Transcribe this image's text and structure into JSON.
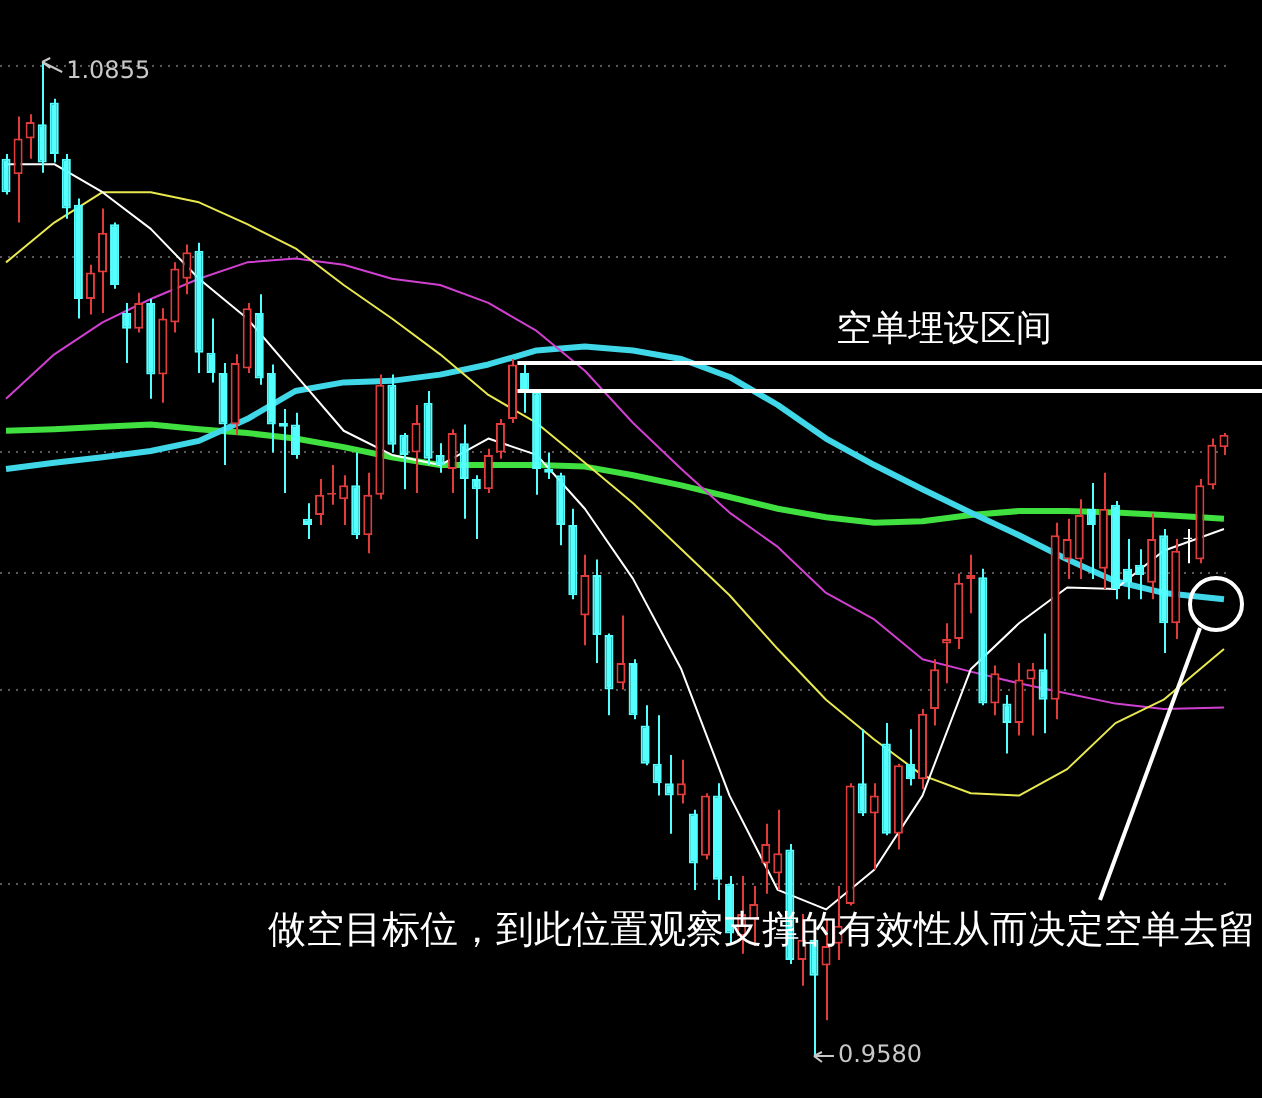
{
  "chart_data": {
    "type": "candlestick",
    "categories": [
      null,
      null,
      null,
      null,
      null,
      null,
      null,
      null,
      null,
      null,
      null,
      null,
      null,
      null,
      null,
      null,
      null,
      null,
      null,
      null,
      null,
      null,
      null,
      null,
      null,
      null,
      null,
      null,
      null,
      null,
      null,
      null,
      null,
      null,
      null,
      null,
      null,
      null,
      null,
      null,
      null,
      null,
      null,
      null,
      null,
      null,
      null,
      null,
      null,
      null,
      null,
      null,
      null,
      null,
      null,
      null,
      null,
      null,
      null,
      null,
      null,
      null,
      null,
      null,
      null,
      null,
      null,
      null,
      null,
      null,
      null,
      null,
      null,
      null,
      null,
      null,
      null,
      null,
      null,
      null,
      null,
      null,
      null,
      null,
      null,
      null,
      null,
      null,
      null,
      null,
      null,
      null,
      null,
      null,
      null,
      null,
      null,
      null,
      null,
      null,
      null,
      null
    ],
    "ohlc": [
      [
        1.0731,
        1.0737,
        1.0685,
        1.0688
      ],
      [
        1.0711,
        1.0785,
        1.0649,
        1.0757
      ],
      [
        1.0757,
        1.0788,
        1.0731,
        1.0778
      ],
      [
        1.0775,
        1.0855,
        1.0713,
        1.0726
      ],
      [
        1.0803,
        1.0808,
        1.0726,
        1.0737
      ],
      [
        1.0731,
        1.0737,
        1.0654,
        1.0667
      ],
      [
        1.0672,
        1.068,
        1.0526,
        1.0551
      ],
      [
        1.0551,
        1.0595,
        1.0531,
        1.0585
      ],
      [
        1.0585,
        1.0667,
        1.0533,
        1.0636
      ],
      [
        1.0647,
        1.0649,
        1.0564,
        1.0569
      ],
      [
        1.0533,
        1.0546,
        1.0469,
        1.0513
      ],
      [
        1.0513,
        1.0559,
        1.0508,
        1.0546
      ],
      [
        1.0546,
        1.0551,
        1.0423,
        1.0454
      ],
      [
        1.0454,
        1.0539,
        1.0418,
        1.0526
      ],
      [
        1.0521,
        1.0598,
        1.0508,
        1.059
      ],
      [
        1.0577,
        1.0621,
        1.0557,
        1.0611
      ],
      [
        1.0613,
        1.0623,
        1.0456,
        1.0482
      ],
      [
        1.0482,
        1.0526,
        1.0444,
        1.0456
      ],
      [
        1.0456,
        1.0469,
        1.0338,
        1.039
      ],
      [
        1.039,
        1.048,
        1.0377,
        1.0469
      ],
      [
        1.0462,
        1.0546,
        1.0456,
        1.0539
      ],
      [
        1.0533,
        1.0557,
        1.0441,
        1.0449
      ],
      [
        1.0456,
        1.0467,
        1.0354,
        1.039
      ],
      [
        1.0392,
        1.041,
        1.0302,
        1.0387
      ],
      [
        1.039,
        1.0405,
        1.0346,
        1.0351
      ],
      [
        1.0269,
        1.0289,
        1.0243,
        1.0261
      ],
      [
        1.0274,
        1.032,
        1.0261,
        1.03
      ],
      [
        1.03,
        1.0338,
        1.0287,
        1.0302
      ],
      [
        1.0294,
        1.0325,
        1.0261,
        1.0312
      ],
      [
        1.0312,
        1.0354,
        1.0243,
        1.0248
      ],
      [
        1.0248,
        1.0328,
        1.0225,
        1.03
      ],
      [
        1.03,
        1.0454,
        1.0294,
        1.0441
      ],
      [
        1.0441,
        1.0454,
        1.0354,
        1.0364
      ],
      [
        1.0377,
        1.0379,
        1.0307,
        1.0351
      ],
      [
        1.0354,
        1.0415,
        1.0302,
        1.0392
      ],
      [
        1.0418,
        1.0433,
        1.0338,
        1.0346
      ],
      [
        1.0351,
        1.0366,
        1.0328,
        1.0338
      ],
      [
        1.0333,
        1.0384,
        1.0302,
        1.0379
      ],
      [
        1.0366,
        1.039,
        1.0269,
        1.032
      ],
      [
        1.032,
        1.0325,
        1.0243,
        1.0307
      ],
      [
        1.0307,
        1.0359,
        1.0302,
        1.0351
      ],
      [
        1.0354,
        1.0397,
        1.0346,
        1.0392
      ],
      [
        1.0397,
        1.0474,
        1.0392,
        1.0467
      ],
      [
        1.0456,
        1.0469,
        1.0405,
        1.0431
      ],
      [
        1.0431,
        1.0433,
        1.03,
        1.0333
      ],
      [
        1.0333,
        1.0354,
        1.032,
        1.0328
      ],
      [
        1.0325,
        1.0328,
        1.0235,
        1.0261
      ],
      [
        1.0261,
        1.0282,
        1.0166,
        1.0171
      ],
      [
        1.0145,
        1.0223,
        1.0107,
        1.0197
      ],
      [
        1.0197,
        1.0217,
        1.0084,
        1.012
      ],
      [
        1.012,
        1.0122,
        1.0017,
        1.005
      ],
      [
        1.0058,
        1.0145,
        1.005,
        1.0084
      ],
      [
        1.0084,
        1.0089,
        1.0012,
        1.0017
      ],
      [
        1.0004,
        1.003,
        0.9953,
        0.9955
      ],
      [
        0.9955,
        1.0017,
        0.9914,
        0.993
      ],
      [
        0.993,
        0.9966,
        0.9865,
        0.9914
      ],
      [
        0.9914,
        0.996,
        0.9904,
        0.993
      ],
      [
        0.9891,
        0.9896,
        0.9793,
        0.9827
      ],
      [
        0.9837,
        0.9917,
        0.9832,
        0.9914
      ],
      [
        0.9914,
        0.993,
        0.978,
        0.9806
      ],
      [
        0.9801,
        0.9811,
        0.9724,
        0.9737
      ],
      [
        0.9734,
        0.9811,
        0.9711,
        0.9762
      ],
      [
        0.9755,
        0.9798,
        0.9721,
        0.9775
      ],
      [
        0.9827,
        0.9878,
        0.9788,
        0.9852
      ],
      [
        0.9814,
        0.9896,
        0.9793,
        0.984
      ],
      [
        0.9845,
        0.9852,
        0.9698,
        0.9703
      ],
      [
        0.9703,
        0.9762,
        0.967,
        0.9729
      ],
      [
        0.9729,
        0.9729,
        0.958,
        0.9683
      ],
      [
        0.9696,
        0.9755,
        0.9626,
        0.9721
      ],
      [
        0.9724,
        0.9798,
        0.9703,
        0.9747
      ],
      [
        0.9775,
        0.993,
        0.9773,
        0.9927
      ],
      [
        0.993,
        0.9999,
        0.9888,
        0.9891
      ],
      [
        0.9891,
        0.993,
        0.9819,
        0.9914
      ],
      [
        0.9981,
        1.0007,
        0.9863,
        0.9865
      ],
      [
        0.9865,
        0.9955,
        0.9845,
        0.9953
      ],
      [
        0.9955,
        0.9999,
        0.9927,
        0.9935
      ],
      [
        0.9935,
        1.0025,
        0.9922,
        1.0019
      ],
      [
        1.0025,
        1.0089,
        1.0004,
        1.0076
      ],
      [
        1.0109,
        1.0135,
        1.0058,
        1.0115
      ],
      [
        1.0115,
        1.0199,
        1.0102,
        1.0187
      ],
      [
        1.0192,
        1.0223,
        1.0148,
        1.0197
      ],
      [
        1.0194,
        1.0205,
        1.003,
        1.0032
      ],
      [
        1.0032,
        1.0081,
        1.0017,
        1.0071
      ],
      [
        1.0032,
        1.0043,
        0.9968,
        1.0007
      ],
      [
        1.0007,
        1.0084,
        0.9991,
        1.0063
      ],
      [
        1.0063,
        1.0084,
        0.9991,
        1.0076
      ],
      [
        1.0076,
        1.0122,
        0.9994,
        1.0037
      ],
      [
        1.0037,
        1.0264,
        1.0012,
        1.0248
      ],
      [
        1.0217,
        1.0269,
        1.0192,
        1.0243
      ],
      [
        1.0217,
        1.0294,
        1.0192,
        1.0274
      ],
      [
        1.0282,
        1.0315,
        1.0192,
        1.0261
      ],
      [
        1.0205,
        1.0328,
        1.0179,
        1.0282
      ],
      [
        1.0287,
        1.0292,
        1.0166,
        1.0179
      ],
      [
        1.0205,
        1.0243,
        1.0166,
        1.0187
      ],
      [
        1.021,
        1.023,
        1.0166,
        1.0197
      ],
      [
        1.0187,
        1.0276,
        1.0166,
        1.0243
      ],
      [
        1.0248,
        1.0256,
        1.0097,
        1.0135
      ],
      [
        1.0135,
        1.0243,
        1.0115,
        1.0228
      ],
      [
        1.0243,
        1.0256,
        1.0212,
        1.0245
      ],
      [
        1.0217,
        1.032,
        1.0212,
        1.0312
      ],
      [
        1.0312,
        1.0372,
        1.0307,
        1.0364
      ],
      [
        1.0361,
        1.0379,
        1.0351,
        1.0377
      ]
    ],
    "colors": [
      "#54ffff",
      "#e03c3c",
      "#e03c3c",
      "#54ffff",
      "#54ffff",
      "#54ffff",
      "#54ffff",
      "#e03c3c",
      "#e03c3c",
      "#54ffff",
      "#54ffff",
      "#e03c3c",
      "#54ffff",
      "#e03c3c",
      "#e03c3c",
      "#e03c3c",
      "#54ffff",
      "#54ffff",
      "#54ffff",
      "#e03c3c",
      "#e03c3c",
      "#54ffff",
      "#54ffff",
      "#54ffff",
      "#54ffff",
      "#54ffff",
      "#e03c3c",
      "#e03c3c",
      "#e03c3c",
      "#54ffff",
      "#e03c3c",
      "#e03c3c",
      "#54ffff",
      "#54ffff",
      "#e03c3c",
      "#54ffff",
      "#54ffff",
      "#e03c3c",
      "#54ffff",
      "#54ffff",
      "#e03c3c",
      "#e03c3c",
      "#e03c3c",
      "#54ffff",
      "#54ffff",
      "#54ffff",
      "#54ffff",
      "#54ffff",
      "#e03c3c",
      "#54ffff",
      "#54ffff",
      "#e03c3c",
      "#54ffff",
      "#54ffff",
      "#54ffff",
      "#54ffff",
      "#e03c3c",
      "#54ffff",
      "#e03c3c",
      "#54ffff",
      "#54ffff",
      "#e03c3c",
      "#e03c3c",
      "#e03c3c",
      "#e03c3c",
      "#54ffff",
      "#e03c3c",
      "#54ffff",
      "#e03c3c",
      "#e03c3c",
      "#e03c3c",
      "#54ffff",
      "#e03c3c",
      "#54ffff",
      "#e03c3c",
      "#54ffff",
      "#e03c3c",
      "#e03c3c",
      "#e03c3c",
      "#e03c3c",
      "#e03c3c",
      "#54ffff",
      "#e03c3c",
      "#54ffff",
      "#e03c3c",
      "#e03c3c",
      "#54ffff",
      "#e03c3c",
      "#e03c3c",
      "#e03c3c",
      "#54ffff",
      "#e03c3c",
      "#54ffff",
      "#54ffff",
      "#54ffff",
      "#e03c3c",
      "#54ffff",
      "#e03c3c",
      "#ffffff",
      "#e03c3c",
      "#e03c3c",
      "#e03c3c"
    ],
    "series": [
      {
        "type": "line",
        "color": "#ffffff",
        "values": [
          1.0724,
          null,
          null,
          null,
          1.0724,
          null,
          null,
          null,
          1.0688,
          null,
          null,
          null,
          1.0641,
          null,
          null,
          null,
          1.0577,
          null,
          null,
          null,
          1.0526,
          null,
          null,
          null,
          1.0454,
          null,
          null,
          null,
          1.0382,
          null,
          null,
          null,
          1.0351,
          null,
          null,
          null,
          1.0338,
          null,
          null,
          null,
          1.0372,
          null,
          null,
          null,
          1.0351,
          null,
          null,
          null,
          1.0282,
          null,
          null,
          null,
          1.0192,
          null,
          null,
          null,
          1.0076,
          null,
          null,
          null,
          0.9914,
          null,
          null,
          null,
          0.9793,
          null,
          null,
          null,
          0.9768,
          null,
          null,
          null,
          0.9819,
          null,
          null,
          null,
          0.9914,
          null,
          null,
          null,
          1.0076,
          null,
          null,
          null,
          1.0135,
          null,
          null,
          null,
          1.0181,
          null,
          null,
          null,
          1.0179,
          null,
          null,
          null,
          1.0228,
          null,
          null,
          null,
          null,
          1.0256
        ]
      },
      {
        "type": "line",
        "color": "#e8e850",
        "values": [
          1.0598,
          null,
          null,
          null,
          1.0649,
          null,
          null,
          null,
          1.0688,
          null,
          null,
          null,
          1.0688,
          null,
          null,
          null,
          1.0675,
          null,
          null,
          null,
          1.0647,
          null,
          null,
          null,
          1.0616,
          null,
          null,
          null,
          1.0569,
          null,
          null,
          null,
          1.0526,
          null,
          null,
          null,
          1.048,
          null,
          null,
          null,
          1.0428,
          null,
          null,
          null,
          1.0392,
          null,
          null,
          null,
          1.0341,
          null,
          null,
          null,
          1.0289,
          null,
          null,
          null,
          1.023,
          null,
          null,
          null,
          1.0171,
          null,
          null,
          null,
          1.0102,
          null,
          null,
          null,
          1.0037,
          null,
          null,
          null,
          0.9986,
          null,
          null,
          null,
          0.994,
          null,
          null,
          null,
          0.9917,
          null,
          null,
          null,
          0.9914,
          null,
          null,
          null,
          0.9948,
          null,
          null,
          null,
          1.0007,
          null,
          null,
          null,
          1.0037,
          null,
          null,
          null,
          null,
          1.0102
        ]
      },
      {
        "type": "line",
        "color": "#d040d0",
        "values": [
          1.0423,
          null,
          null,
          null,
          1.048,
          null,
          null,
          null,
          1.0521,
          null,
          null,
          null,
          1.0551,
          null,
          null,
          null,
          1.0577,
          null,
          null,
          null,
          1.0598,
          null,
          null,
          null,
          1.0603,
          null,
          null,
          null,
          1.0595,
          null,
          null,
          null,
          1.0577,
          null,
          null,
          null,
          1.0569,
          null,
          null,
          null,
          1.0546,
          null,
          null,
          null,
          1.051,
          null,
          null,
          null,
          1.0459,
          null,
          null,
          null,
          1.0392,
          null,
          null,
          null,
          1.0333,
          null,
          null,
          null,
          1.0277,
          null,
          null,
          null,
          1.0233,
          null,
          null,
          null,
          1.0174,
          null,
          null,
          null,
          1.014,
          null,
          null,
          null,
          1.0089,
          null,
          null,
          null,
          1.0073,
          null,
          null,
          null,
          1.0058,
          null,
          null,
          null,
          1.0045,
          null,
          null,
          null,
          1.0032,
          null,
          null,
          null,
          1.0025,
          null,
          null,
          null,
          null,
          1.0027
        ]
      },
      {
        "type": "line",
        "color": "#40d8e8",
        "values": [
          1.0333,
          null,
          null,
          null,
          1.0341,
          null,
          null,
          null,
          1.0348,
          null,
          null,
          null,
          1.0356,
          null,
          null,
          null,
          1.0369,
          null,
          null,
          null,
          1.0397,
          null,
          null,
          null,
          1.0433,
          null,
          null,
          null,
          1.0444,
          null,
          null,
          null,
          1.0446,
          null,
          null,
          null,
          1.0454,
          null,
          null,
          null,
          1.0467,
          null,
          null,
          null,
          1.0485,
          null,
          null,
          null,
          1.049,
          null,
          null,
          null,
          1.0485,
          null,
          null,
          null,
          1.0474,
          null,
          null,
          null,
          1.0451,
          null,
          null,
          null,
          1.0415,
          null,
          null,
          null,
          1.0372,
          null,
          null,
          null,
          1.0338,
          null,
          null,
          null,
          1.0307,
          null,
          null,
          null,
          1.0277,
          null,
          null,
          null,
          1.0248,
          null,
          null,
          null,
          1.0217,
          null,
          null,
          null,
          1.0189,
          null,
          null,
          null,
          1.0174,
          null,
          null,
          null,
          null,
          1.0166
        ]
      },
      {
        "type": "line",
        "color": "#40e040",
        "values": [
          1.0382,
          null,
          null,
          null,
          1.0384,
          null,
          null,
          null,
          1.0387,
          null,
          null,
          null,
          1.039,
          null,
          null,
          null,
          1.0384,
          null,
          null,
          null,
          1.0379,
          null,
          null,
          null,
          1.0372,
          null,
          null,
          null,
          1.0361,
          null,
          null,
          null,
          1.0348,
          null,
          null,
          null,
          1.0338,
          null,
          null,
          null,
          1.0338,
          null,
          null,
          null,
          1.0338,
          null,
          null,
          null,
          1.0336,
          null,
          null,
          null,
          1.0325,
          null,
          null,
          null,
          1.0312,
          null,
          null,
          null,
          1.0297,
          null,
          null,
          null,
          1.0282,
          null,
          null,
          null,
          1.0271,
          null,
          null,
          null,
          1.0264,
          null,
          null,
          null,
          1.0266,
          null,
          null,
          null,
          1.0274,
          null,
          null,
          null,
          1.0279,
          null,
          null,
          null,
          1.0279,
          null,
          null,
          null,
          1.0277,
          null,
          null,
          null,
          1.0274,
          null,
          null,
          null,
          null,
          1.0269
        ]
      }
    ],
    "yticks": [
      {
        "value": 0.98,
        "label": null
      },
      {
        "value": 1.005,
        "label": null
      },
      {
        "value": 1.02,
        "label": null
      },
      {
        "value": 1.0355,
        "label": null
      },
      {
        "value": 1.0605,
        "label": null
      },
      {
        "value": 1.085,
        "label": null
      }
    ],
    "grid": "y",
    "ref_lines": [
      {
        "axis": "y",
        "value": 1.0469,
        "label": "空单埋设区间",
        "color": "#ffffff"
      },
      {
        "axis": "y",
        "value": 1.0433,
        "color": "#ffffff"
      }
    ],
    "annotations": [
      "1.0855",
      "0.9580",
      "做空目标位，到此位置观察支撑的有效性从而决定空单去留"
    ]
  }
}
